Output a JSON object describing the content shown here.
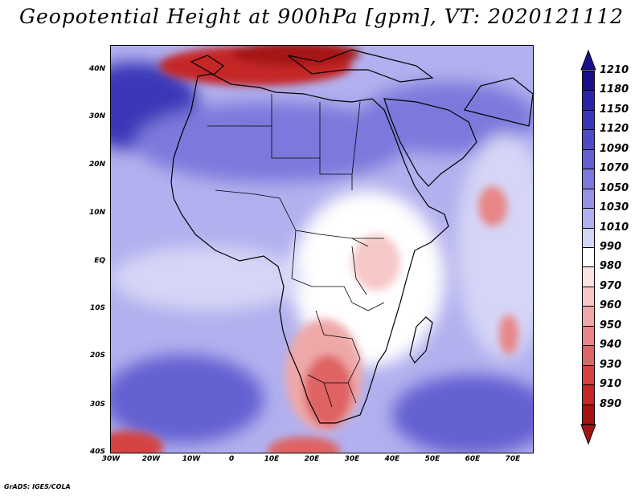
{
  "title": "Geopotential Height at 900hPa [gpm], VT: 2020121112",
  "credit": "GrADS: IGES/COLA",
  "map": {
    "lat_labels": [
      "40N",
      "30N",
      "20N",
      "10N",
      "EQ",
      "10S",
      "20S",
      "30S",
      "40S"
    ],
    "lon_labels": [
      "30W",
      "20W",
      "10W",
      "0",
      "10E",
      "20E",
      "30E",
      "40E",
      "50E",
      "60E",
      "70E"
    ],
    "lat_range": [
      -40,
      45
    ],
    "lon_range": [
      -30,
      75
    ]
  },
  "colorbar": {
    "levels": [
      "1210",
      "1180",
      "1150",
      "1120",
      "1090",
      "1070",
      "1050",
      "1030",
      "1010",
      "990",
      "980",
      "970",
      "960",
      "950",
      "940",
      "930",
      "910",
      "890"
    ],
    "colors": [
      "#1a0f8a",
      "#2a25a8",
      "#3b38b8",
      "#4d4ac6",
      "#6460d2",
      "#7c79dc",
      "#9693e5",
      "#b2b0ee",
      "#d5d5f7",
      "#ffffff",
      "#fbe3e3",
      "#f6c8c8",
      "#efa8a8",
      "#e88686",
      "#df6464",
      "#d54242",
      "#c52626",
      "#a51313"
    ],
    "top_arrow_color": "#1a0f8a",
    "bottom_arrow_color": "#a51313"
  }
}
